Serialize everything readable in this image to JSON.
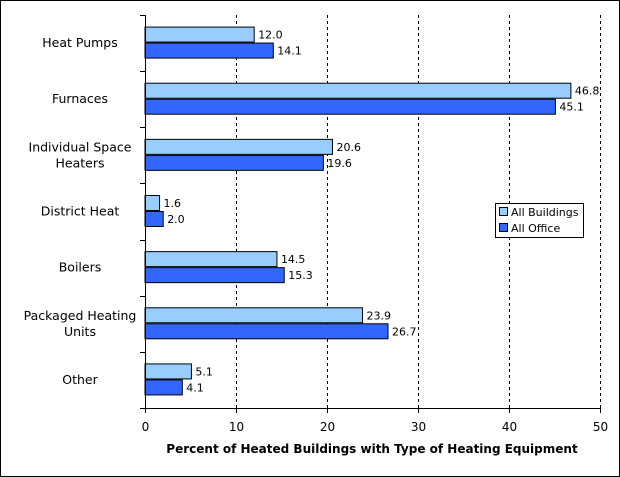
{
  "chart_data": {
    "type": "bar",
    "orientation": "horizontal",
    "categories": [
      [
        "Heat Pumps"
      ],
      [
        "Furnaces"
      ],
      [
        "Individual Space",
        "Heaters"
      ],
      [
        "District Heat"
      ],
      [
        "Boilers"
      ],
      [
        "Packaged Heating",
        "Units"
      ],
      [
        "Other"
      ]
    ],
    "series": [
      {
        "name": "All Buildings",
        "color": "#99ccff",
        "values": [
          12.0,
          46.8,
          20.6,
          1.6,
          14.5,
          23.9,
          5.1
        ]
      },
      {
        "name": "All Office",
        "color": "#3366ff",
        "values": [
          14.1,
          45.1,
          19.6,
          2.0,
          15.3,
          26.7,
          4.1
        ]
      }
    ],
    "xlabel": "Percent of Heated Buildings with Type of Heating Equipment",
    "xlim": [
      0,
      50
    ],
    "xticks": [
      "0",
      "10",
      "20",
      "30",
      "40",
      "50"
    ],
    "grid": "vertical dashed",
    "legend_position": "right"
  }
}
